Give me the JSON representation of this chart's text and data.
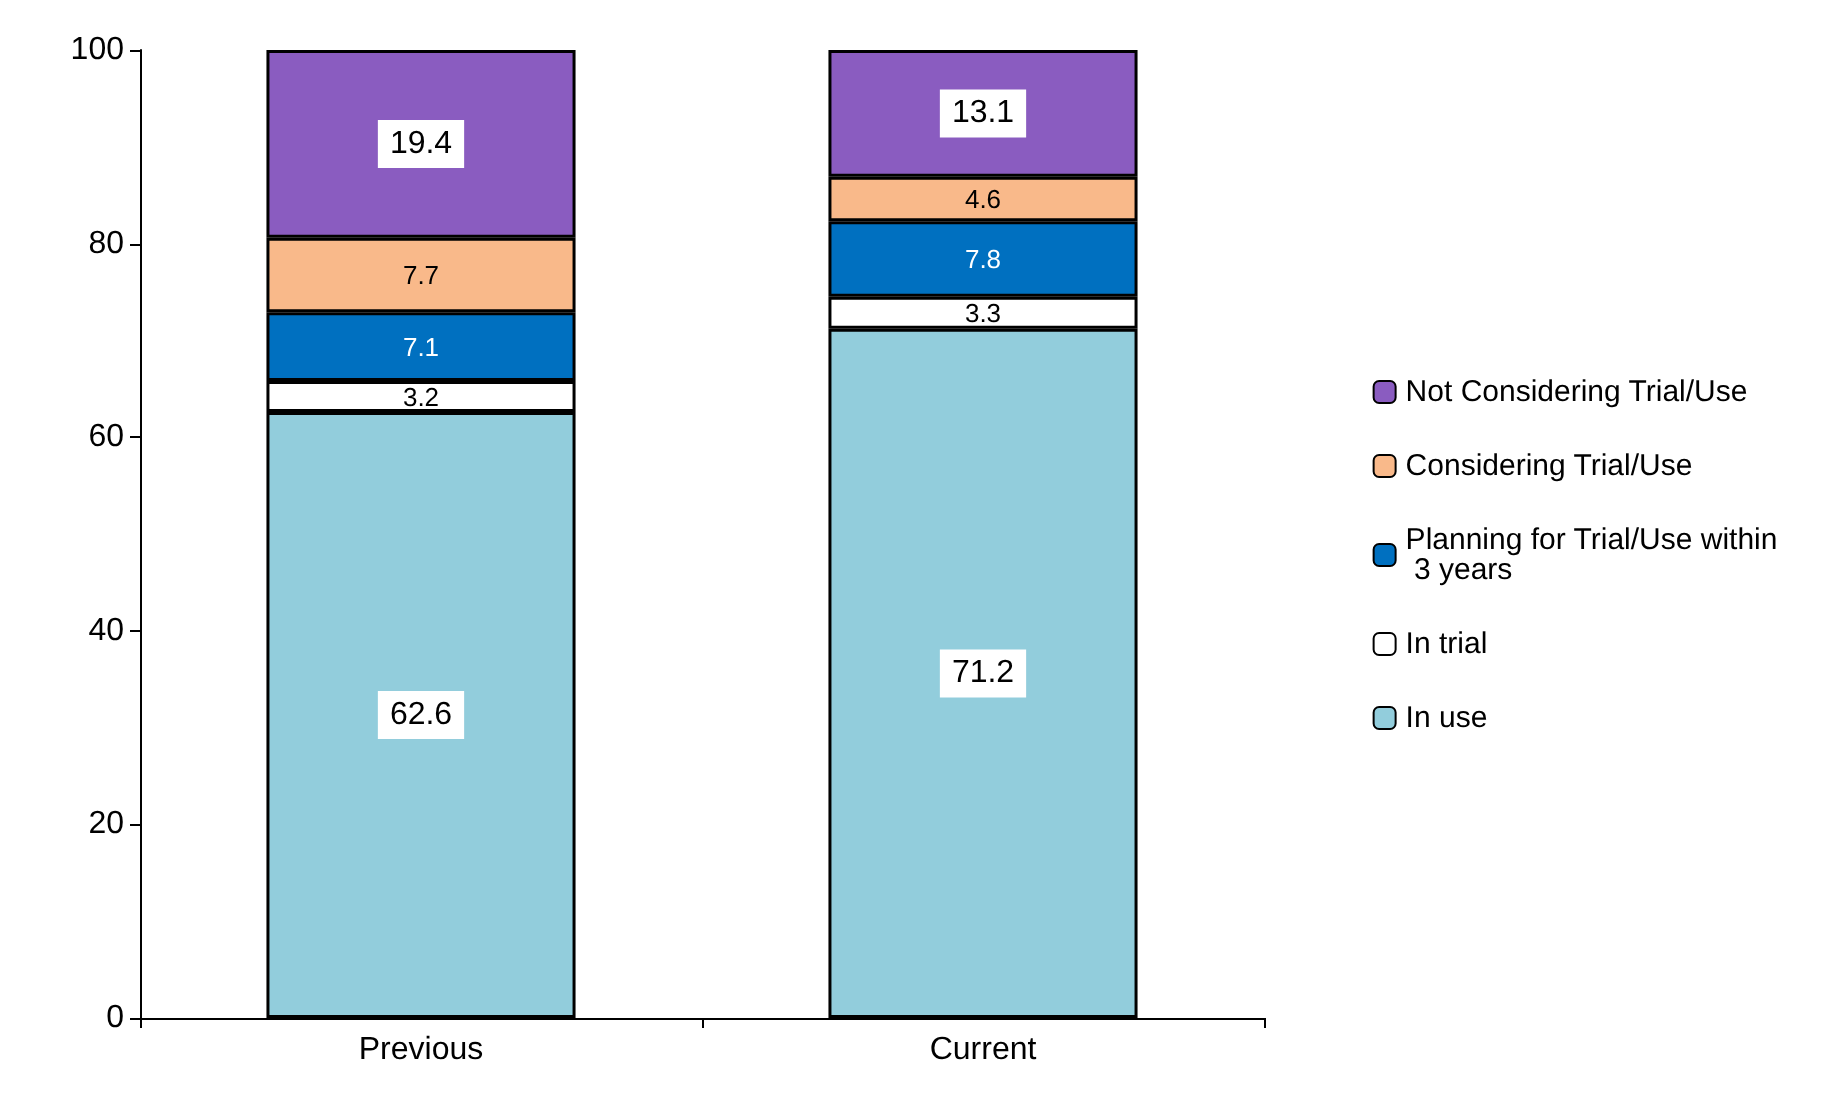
{
  "chart_data": {
    "type": "bar",
    "stacked": true,
    "categories": [
      "Previous",
      "Current"
    ],
    "series": [
      {
        "name": "In use",
        "color": "#92cddc",
        "values": [
          62.6,
          71.2
        ]
      },
      {
        "name": "In trial",
        "color": "#ffffff",
        "values": [
          3.2,
          3.3
        ]
      },
      {
        "name": "Planning for Trial/Use within 3 years",
        "color": "#0070c0",
        "values": [
          7.1,
          7.8
        ]
      },
      {
        "name": "Considering Trial/Use",
        "color": "#f9b98a",
        "values": [
          7.7,
          4.6
        ]
      },
      {
        "name": "Not Considering Trial/Use",
        "color": "#8a5cc0",
        "values": [
          19.4,
          13.1
        ]
      }
    ],
    "ylim": [
      0,
      100
    ],
    "yticks": [
      0,
      20,
      40,
      60,
      80,
      100
    ],
    "grid": false,
    "legend": "right",
    "data_labels": true
  }
}
